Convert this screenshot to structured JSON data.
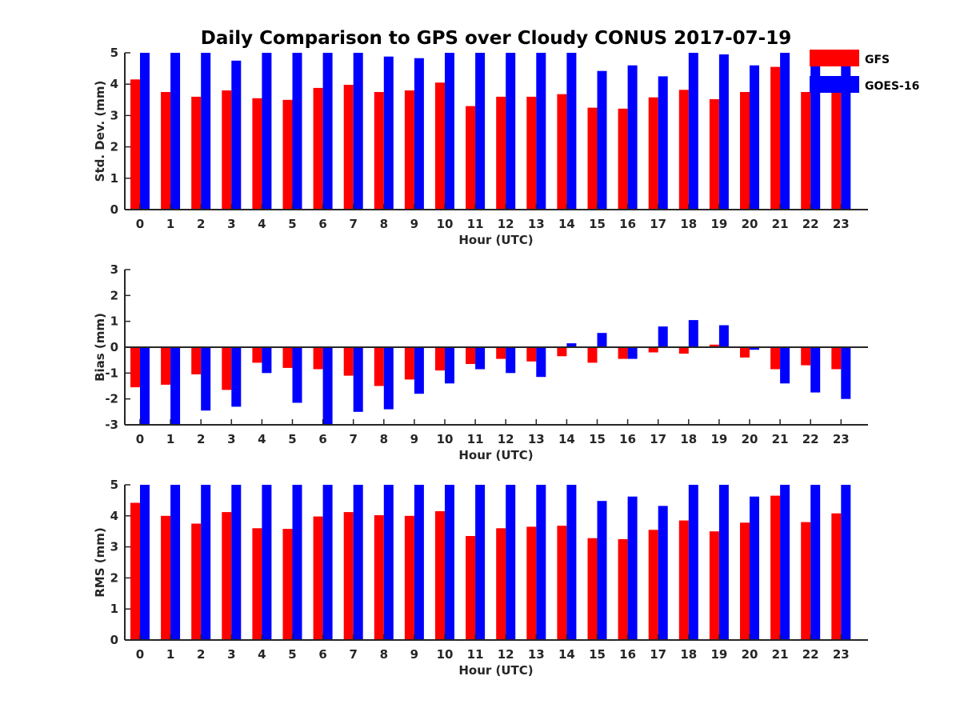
{
  "colors": {
    "gfs": "#ff0000",
    "goes16": "#0000ff",
    "axis": "#262626"
  },
  "chart_data": {
    "title": "Daily Comparison to GPS over Cloudy CONUS 2017-07-19",
    "legend": {
      "placement": "top-right",
      "entries": [
        "GFS",
        "GOES-16"
      ]
    },
    "panels": [
      {
        "type": "bar",
        "ylabel": "Std. Dev. (mm)",
        "xlabel": "Hour (UTC)",
        "ylim": [
          0,
          5
        ],
        "yticks": [
          "0",
          "1",
          "2",
          "3",
          "4",
          "5"
        ],
        "categories": [
          "0",
          "1",
          "2",
          "3",
          "4",
          "5",
          "6",
          "7",
          "8",
          "9",
          "10",
          "11",
          "12",
          "13",
          "14",
          "15",
          "16",
          "17",
          "18",
          "19",
          "20",
          "21",
          "22",
          "23"
        ],
        "series": [
          {
            "name": "GFS",
            "values": [
              4.15,
              3.75,
              3.6,
              3.8,
              3.55,
              3.5,
              3.88,
              3.98,
              3.75,
              3.8,
              4.05,
              3.3,
              3.6,
              3.6,
              3.68,
              3.25,
              3.22,
              3.58,
              3.82,
              3.52,
              3.75,
              4.55,
              3.75,
              3.88
            ]
          },
          {
            "name": "GOES-16",
            "values": [
              5,
              5,
              5,
              4.75,
              5,
              5,
              5,
              5,
              4.88,
              4.83,
              5,
              5,
              5,
              5,
              5,
              4.42,
              4.6,
              4.25,
              5,
              4.95,
              4.6,
              5,
              5,
              5
            ]
          }
        ]
      },
      {
        "type": "bar",
        "ylabel": "Bias (mm)",
        "xlabel": "Hour (UTC)",
        "ylim": [
          -3,
          3
        ],
        "yticks": [
          "-3",
          "-2",
          "-1",
          "0",
          "1",
          "2",
          "3"
        ],
        "categories": [
          "0",
          "1",
          "2",
          "3",
          "4",
          "5",
          "6",
          "7",
          "8",
          "9",
          "10",
          "11",
          "12",
          "13",
          "14",
          "15",
          "16",
          "17",
          "18",
          "19",
          "20",
          "21",
          "22",
          "23"
        ],
        "series": [
          {
            "name": "GFS",
            "values": [
              -1.55,
              -1.45,
              -1.05,
              -1.65,
              -0.6,
              -0.8,
              -0.85,
              -1.1,
              -1.5,
              -1.25,
              -0.9,
              -0.65,
              -0.45,
              -0.55,
              -0.35,
              -0.6,
              -0.45,
              -0.2,
              -0.25,
              0.1,
              -0.4,
              -0.85,
              -0.7,
              -0.85
            ]
          },
          {
            "name": "GOES-16",
            "values": [
              -3,
              -3,
              -2.45,
              -2.3,
              -1.0,
              -2.15,
              -3,
              -2.5,
              -2.4,
              -1.8,
              -1.4,
              -0.85,
              -1.0,
              -1.15,
              0.15,
              0.55,
              -0.45,
              0.8,
              1.05,
              0.85,
              -0.1,
              -1.4,
              -1.75,
              -2.0
            ]
          }
        ]
      },
      {
        "type": "bar",
        "ylabel": "RMS (mm)",
        "xlabel": "Hour (UTC)",
        "ylim": [
          0,
          5
        ],
        "yticks": [
          "0",
          "1",
          "2",
          "3",
          "4",
          "5"
        ],
        "categories": [
          "0",
          "1",
          "2",
          "3",
          "4",
          "5",
          "6",
          "7",
          "8",
          "9",
          "10",
          "11",
          "12",
          "13",
          "14",
          "15",
          "16",
          "17",
          "18",
          "19",
          "20",
          "21",
          "22",
          "23"
        ],
        "series": [
          {
            "name": "GFS",
            "values": [
              4.42,
              4.0,
              3.75,
              4.12,
              3.6,
              3.58,
              3.98,
              4.12,
              4.02,
              4.0,
              4.15,
              3.35,
              3.6,
              3.65,
              3.68,
              3.28,
              3.25,
              3.55,
              3.85,
              3.5,
              3.78,
              4.65,
              3.8,
              4.08
            ]
          },
          {
            "name": "GOES-16",
            "values": [
              5,
              5,
              5,
              5,
              5,
              5,
              5,
              5,
              5,
              5,
              5,
              5,
              5,
              5,
              5,
              4.48,
              4.62,
              4.32,
              5,
              5,
              4.62,
              5,
              5,
              5
            ]
          }
        ]
      }
    ]
  }
}
